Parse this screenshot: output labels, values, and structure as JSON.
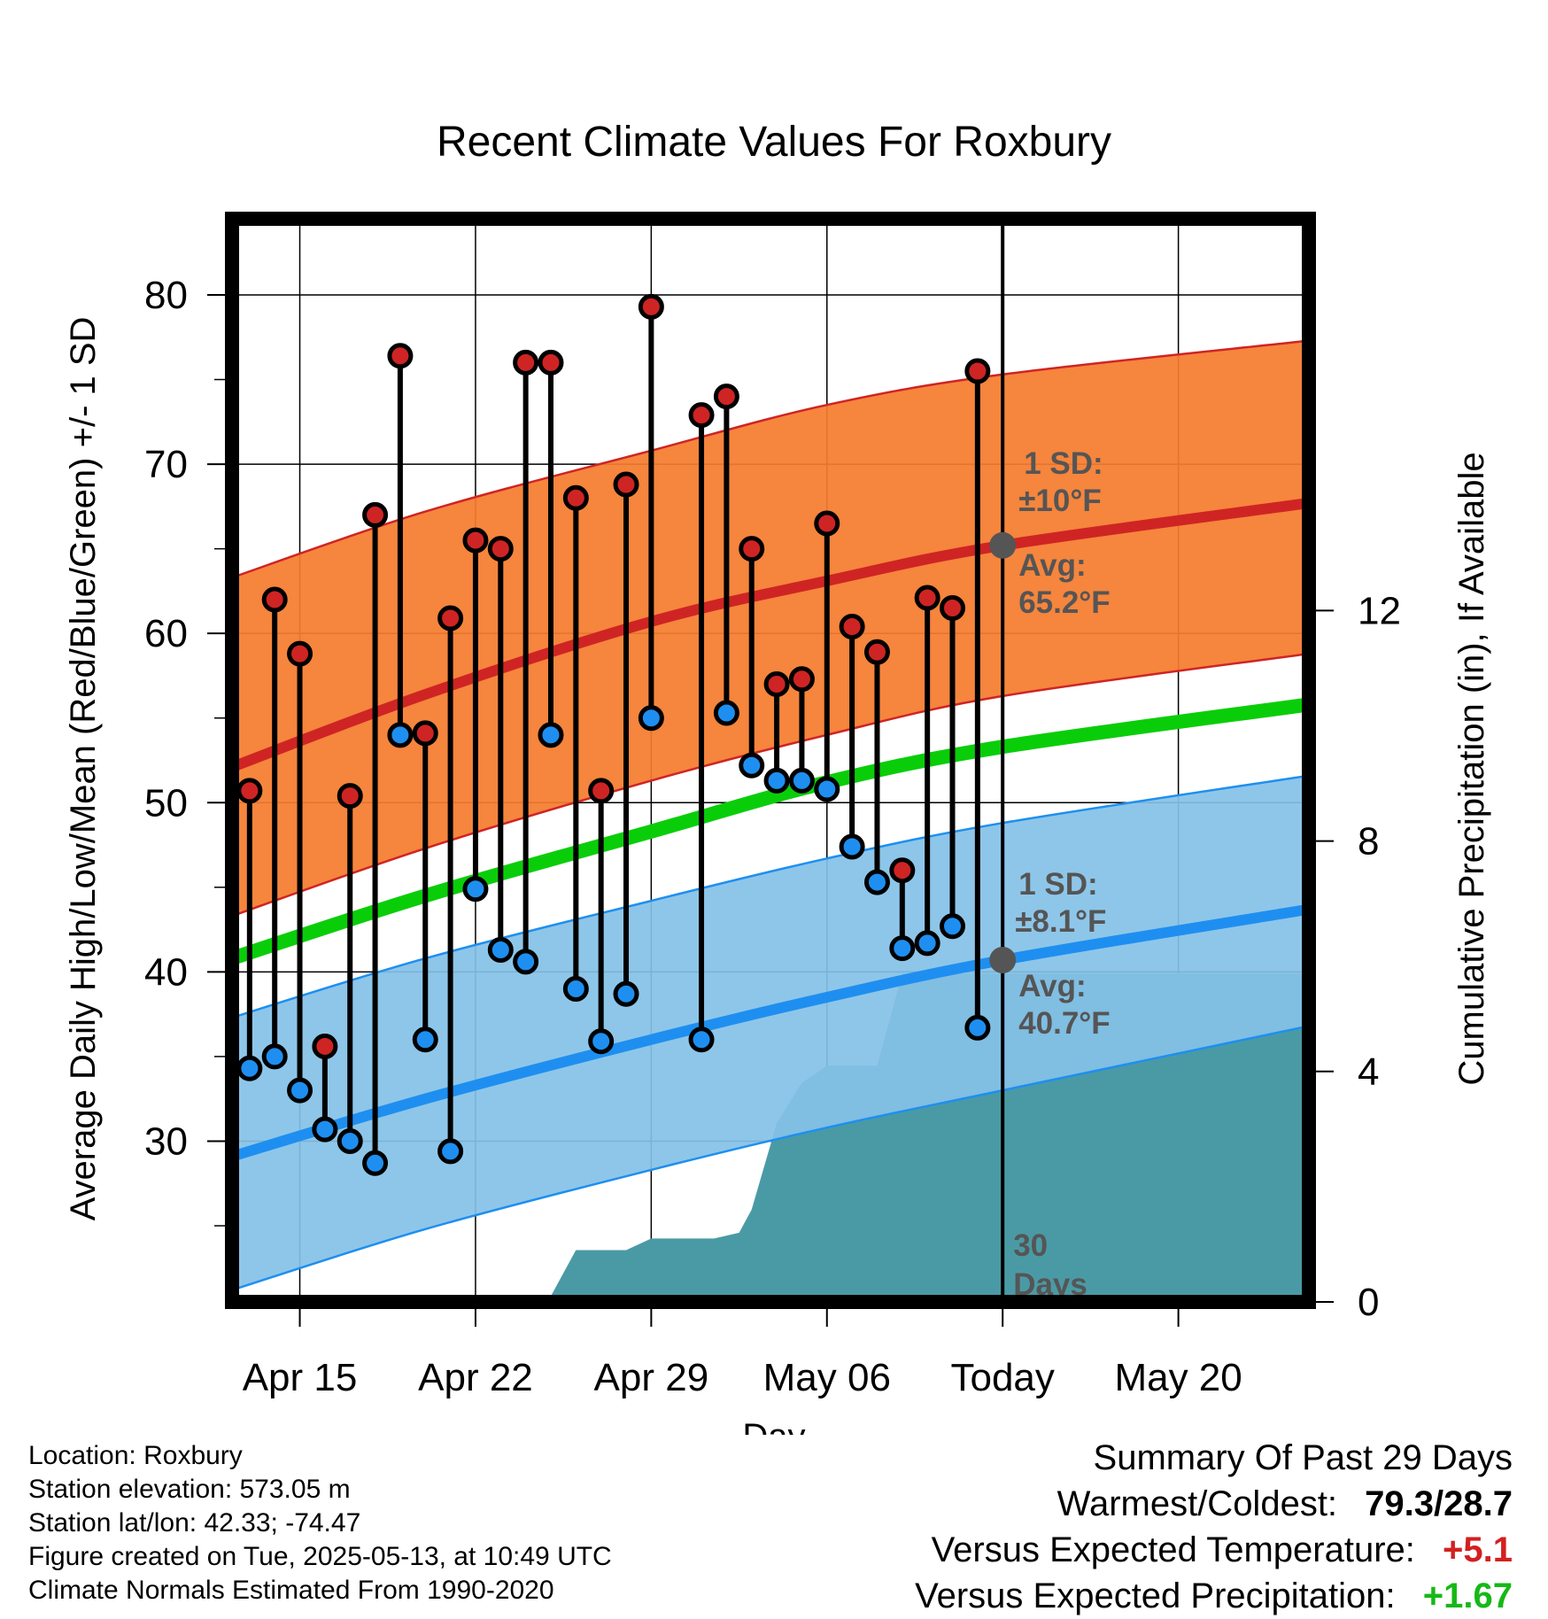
{
  "chart_data": {
    "type": "line",
    "title": "Recent Climate Values For Roxbury",
    "xlabel": "Day",
    "ylabel": "Average Daily High/Low/Mean (Red/Blue/Green) +/- 1 SD",
    "y2label": "Cumulative Precipitation (in), If Available",
    "ylim": [
      20.5,
      84.5
    ],
    "y2lim": [
      0,
      18.8
    ],
    "xlim": [
      -2.7,
      40.2
    ],
    "y_ticks": [
      30,
      40,
      50,
      60,
      70,
      80
    ],
    "y2_ticks": [
      0,
      4,
      8,
      12
    ],
    "x_ticks": [
      {
        "x": 0,
        "label": "Apr 15"
      },
      {
        "x": 7,
        "label": "Apr 22"
      },
      {
        "x": 14,
        "label": "Apr 29"
      },
      {
        "x": 21,
        "label": "May 06"
      },
      {
        "x": 28,
        "label": "Today"
      },
      {
        "x": 35,
        "label": "May 20"
      }
    ],
    "today_x": 28,
    "grid": true,
    "days": [
      -2,
      -1,
      0,
      1,
      2,
      3,
      4,
      5,
      6,
      7,
      8,
      9,
      10,
      11,
      12,
      13,
      14,
      15,
      16,
      17,
      18,
      19,
      20,
      21,
      22,
      23,
      24,
      25,
      26,
      27
    ],
    "highs": [
      50.7,
      62.0,
      58.8,
      35.6,
      50.4,
      67.0,
      76.4,
      54.1,
      60.9,
      65.5,
      65.0,
      76.0,
      76.0,
      68.0,
      50.7,
      68.8,
      79.3,
      72.9,
      74.0,
      65.0,
      57.0,
      57.3,
      66.5,
      60.4,
      58.9,
      46.0,
      62.1,
      61.5,
      75.5
    ],
    "lows": [
      34.3,
      35.0,
      33.0,
      30.7,
      30.0,
      28.7,
      54.0,
      36.0,
      29.4,
      44.9,
      41.3,
      40.6,
      54.0,
      39.0,
      35.9,
      38.7,
      55.0,
      36.0,
      55.3,
      52.2,
      51.3,
      51.3,
      50.8,
      47.4,
      45.3,
      41.4,
      41.7,
      42.7,
      36.7
    ],
    "pairs_days": [
      -2,
      -1,
      0,
      1,
      2,
      3,
      4,
      5,
      6,
      7,
      8,
      9,
      10,
      11,
      12,
      13,
      14,
      16,
      17,
      18,
      19,
      20,
      21,
      22,
      23,
      24,
      25,
      26,
      27
    ],
    "normals": {
      "x": [
        -2.7,
        5,
        14,
        21,
        28,
        40.2
      ],
      "high_avg": [
        52.1,
        56.4,
        60.7,
        63.1,
        65.2,
        67.7
      ],
      "high_upper": [
        63.3,
        67.2,
        70.8,
        73.5,
        75.3,
        77.3
      ],
      "high_lower": [
        43.3,
        47.3,
        51.3,
        54.0,
        56.3,
        58.8
      ],
      "mean_avg": [
        40.8,
        44.5,
        48.3,
        51.2,
        53.3,
        55.8
      ],
      "low_avg": [
        29.1,
        32.5,
        36.0,
        38.5,
        40.7,
        43.7
      ],
      "low_upper": [
        37.3,
        40.8,
        44.2,
        46.7,
        48.8,
        51.6
      ],
      "low_lower": [
        21.2,
        24.8,
        28.3,
        30.8,
        33.0,
        36.8
      ]
    },
    "precip": {
      "x": [
        -2.7,
        5,
        7,
        8,
        8.5,
        9.5,
        10,
        11,
        12,
        13,
        14,
        15,
        16.5,
        17.5,
        18,
        19,
        20,
        21,
        22,
        23,
        24,
        25,
        40.2
      ],
      "values": [
        0.0,
        0.0,
        0.05,
        0.05,
        0.1,
        0.1,
        0.1,
        0.9,
        0.9,
        0.9,
        1.1,
        1.1,
        1.1,
        1.2,
        1.6,
        3.1,
        3.8,
        4.1,
        4.1,
        4.1,
        5.7,
        5.7,
        5.7
      ]
    },
    "annotations": {
      "high_sd": "1 SD:",
      "high_sd_val": "±10°F",
      "high_avg_label": "Avg:",
      "high_avg_val": "65.2°F",
      "low_sd": "1 SD:",
      "low_sd_val": "±8.1°F",
      "low_avg_label": "Avg:",
      "low_avg_val": "40.7°F",
      "days_count": "30",
      "days_word": "Days"
    },
    "colors": {
      "high_band": "#f57c2e",
      "high_line": "#cf2424",
      "low_band": "#84c1e7",
      "low_line": "#1e8ff0",
      "mean_line": "#0acd0a",
      "precip": "#4a9aa5",
      "high_dot": "#cf2424",
      "low_dot": "#1e8ff0",
      "avg_dot": "#555555"
    }
  },
  "footer": {
    "location": "Location: Roxbury",
    "elevation": "Station elevation: 573.05 m",
    "latlon": "Station lat/lon: 42.33; -74.47",
    "created": "Figure created on Tue, 2025-05-13, at 10:49 UTC",
    "normals": "Climate Normals Estimated From 1990-2020"
  },
  "summary": {
    "title": "Summary Of Past 29 Days",
    "warm_cold_label": "Warmest/Coldest:",
    "warm_cold_value": "79.3/28.7",
    "temp_label": "Versus Expected Temperature:",
    "temp_value": "+5.1",
    "temp_color": "#d32020",
    "precip_label": "Versus Expected Precipitation:",
    "precip_value": "+1.67",
    "precip_color": "#17b817"
  }
}
